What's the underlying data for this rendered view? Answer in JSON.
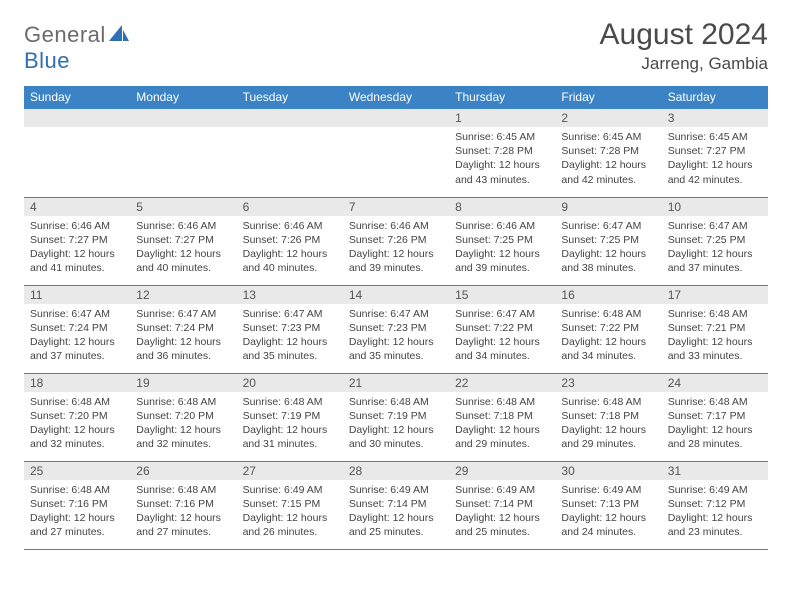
{
  "brand": {
    "part1": "General",
    "part2": "Blue"
  },
  "title": "August 2024",
  "location": "Jarreng, Gambia",
  "colors": {
    "header_bg": "#3b83c4",
    "row_divider": "#3b83c4",
    "daynum_bg": "#e9e9e9",
    "text": "#444444",
    "title_text": "#4a4a4a"
  },
  "weekdays": [
    "Sunday",
    "Monday",
    "Tuesday",
    "Wednesday",
    "Thursday",
    "Friday",
    "Saturday"
  ],
  "weeks": [
    [
      {
        "n": "",
        "sr": "",
        "ss": "",
        "dl": ""
      },
      {
        "n": "",
        "sr": "",
        "ss": "",
        "dl": ""
      },
      {
        "n": "",
        "sr": "",
        "ss": "",
        "dl": ""
      },
      {
        "n": "",
        "sr": "",
        "ss": "",
        "dl": ""
      },
      {
        "n": "1",
        "sr": "6:45 AM",
        "ss": "7:28 PM",
        "dl": "12 hours and 43 minutes."
      },
      {
        "n": "2",
        "sr": "6:45 AM",
        "ss": "7:28 PM",
        "dl": "12 hours and 42 minutes."
      },
      {
        "n": "3",
        "sr": "6:45 AM",
        "ss": "7:27 PM",
        "dl": "12 hours and 42 minutes."
      }
    ],
    [
      {
        "n": "4",
        "sr": "6:46 AM",
        "ss": "7:27 PM",
        "dl": "12 hours and 41 minutes."
      },
      {
        "n": "5",
        "sr": "6:46 AM",
        "ss": "7:27 PM",
        "dl": "12 hours and 40 minutes."
      },
      {
        "n": "6",
        "sr": "6:46 AM",
        "ss": "7:26 PM",
        "dl": "12 hours and 40 minutes."
      },
      {
        "n": "7",
        "sr": "6:46 AM",
        "ss": "7:26 PM",
        "dl": "12 hours and 39 minutes."
      },
      {
        "n": "8",
        "sr": "6:46 AM",
        "ss": "7:25 PM",
        "dl": "12 hours and 39 minutes."
      },
      {
        "n": "9",
        "sr": "6:47 AM",
        "ss": "7:25 PM",
        "dl": "12 hours and 38 minutes."
      },
      {
        "n": "10",
        "sr": "6:47 AM",
        "ss": "7:25 PM",
        "dl": "12 hours and 37 minutes."
      }
    ],
    [
      {
        "n": "11",
        "sr": "6:47 AM",
        "ss": "7:24 PM",
        "dl": "12 hours and 37 minutes."
      },
      {
        "n": "12",
        "sr": "6:47 AM",
        "ss": "7:24 PM",
        "dl": "12 hours and 36 minutes."
      },
      {
        "n": "13",
        "sr": "6:47 AM",
        "ss": "7:23 PM",
        "dl": "12 hours and 35 minutes."
      },
      {
        "n": "14",
        "sr": "6:47 AM",
        "ss": "7:23 PM",
        "dl": "12 hours and 35 minutes."
      },
      {
        "n": "15",
        "sr": "6:47 AM",
        "ss": "7:22 PM",
        "dl": "12 hours and 34 minutes."
      },
      {
        "n": "16",
        "sr": "6:48 AM",
        "ss": "7:22 PM",
        "dl": "12 hours and 34 minutes."
      },
      {
        "n": "17",
        "sr": "6:48 AM",
        "ss": "7:21 PM",
        "dl": "12 hours and 33 minutes."
      }
    ],
    [
      {
        "n": "18",
        "sr": "6:48 AM",
        "ss": "7:20 PM",
        "dl": "12 hours and 32 minutes."
      },
      {
        "n": "19",
        "sr": "6:48 AM",
        "ss": "7:20 PM",
        "dl": "12 hours and 32 minutes."
      },
      {
        "n": "20",
        "sr": "6:48 AM",
        "ss": "7:19 PM",
        "dl": "12 hours and 31 minutes."
      },
      {
        "n": "21",
        "sr": "6:48 AM",
        "ss": "7:19 PM",
        "dl": "12 hours and 30 minutes."
      },
      {
        "n": "22",
        "sr": "6:48 AM",
        "ss": "7:18 PM",
        "dl": "12 hours and 29 minutes."
      },
      {
        "n": "23",
        "sr": "6:48 AM",
        "ss": "7:18 PM",
        "dl": "12 hours and 29 minutes."
      },
      {
        "n": "24",
        "sr": "6:48 AM",
        "ss": "7:17 PM",
        "dl": "12 hours and 28 minutes."
      }
    ],
    [
      {
        "n": "25",
        "sr": "6:48 AM",
        "ss": "7:16 PM",
        "dl": "12 hours and 27 minutes."
      },
      {
        "n": "26",
        "sr": "6:48 AM",
        "ss": "7:16 PM",
        "dl": "12 hours and 27 minutes."
      },
      {
        "n": "27",
        "sr": "6:49 AM",
        "ss": "7:15 PM",
        "dl": "12 hours and 26 minutes."
      },
      {
        "n": "28",
        "sr": "6:49 AM",
        "ss": "7:14 PM",
        "dl": "12 hours and 25 minutes."
      },
      {
        "n": "29",
        "sr": "6:49 AM",
        "ss": "7:14 PM",
        "dl": "12 hours and 25 minutes."
      },
      {
        "n": "30",
        "sr": "6:49 AM",
        "ss": "7:13 PM",
        "dl": "12 hours and 24 minutes."
      },
      {
        "n": "31",
        "sr": "6:49 AM",
        "ss": "7:12 PM",
        "dl": "12 hours and 23 minutes."
      }
    ]
  ],
  "labels": {
    "sunrise": "Sunrise: ",
    "sunset": "Sunset: ",
    "daylight": "Daylight: "
  }
}
